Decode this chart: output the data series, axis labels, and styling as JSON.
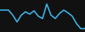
{
  "x": [
    0,
    1,
    2,
    3,
    4,
    5,
    6,
    7,
    8,
    9,
    10,
    11,
    12,
    13,
    14,
    15,
    16,
    17,
    18,
    19,
    20
  ],
  "y": [
    7.0,
    7.0,
    7.0,
    5.5,
    3.5,
    5.5,
    6.5,
    5.8,
    6.8,
    5.2,
    4.5,
    8.8,
    5.5,
    4.5,
    6.0,
    7.0,
    6.2,
    5.2,
    3.0,
    1.5,
    1.5
  ],
  "line_color": "#3baee0",
  "linewidth": 1.4,
  "background_color": "#111111",
  "ylim": [
    0.5,
    10.0
  ]
}
